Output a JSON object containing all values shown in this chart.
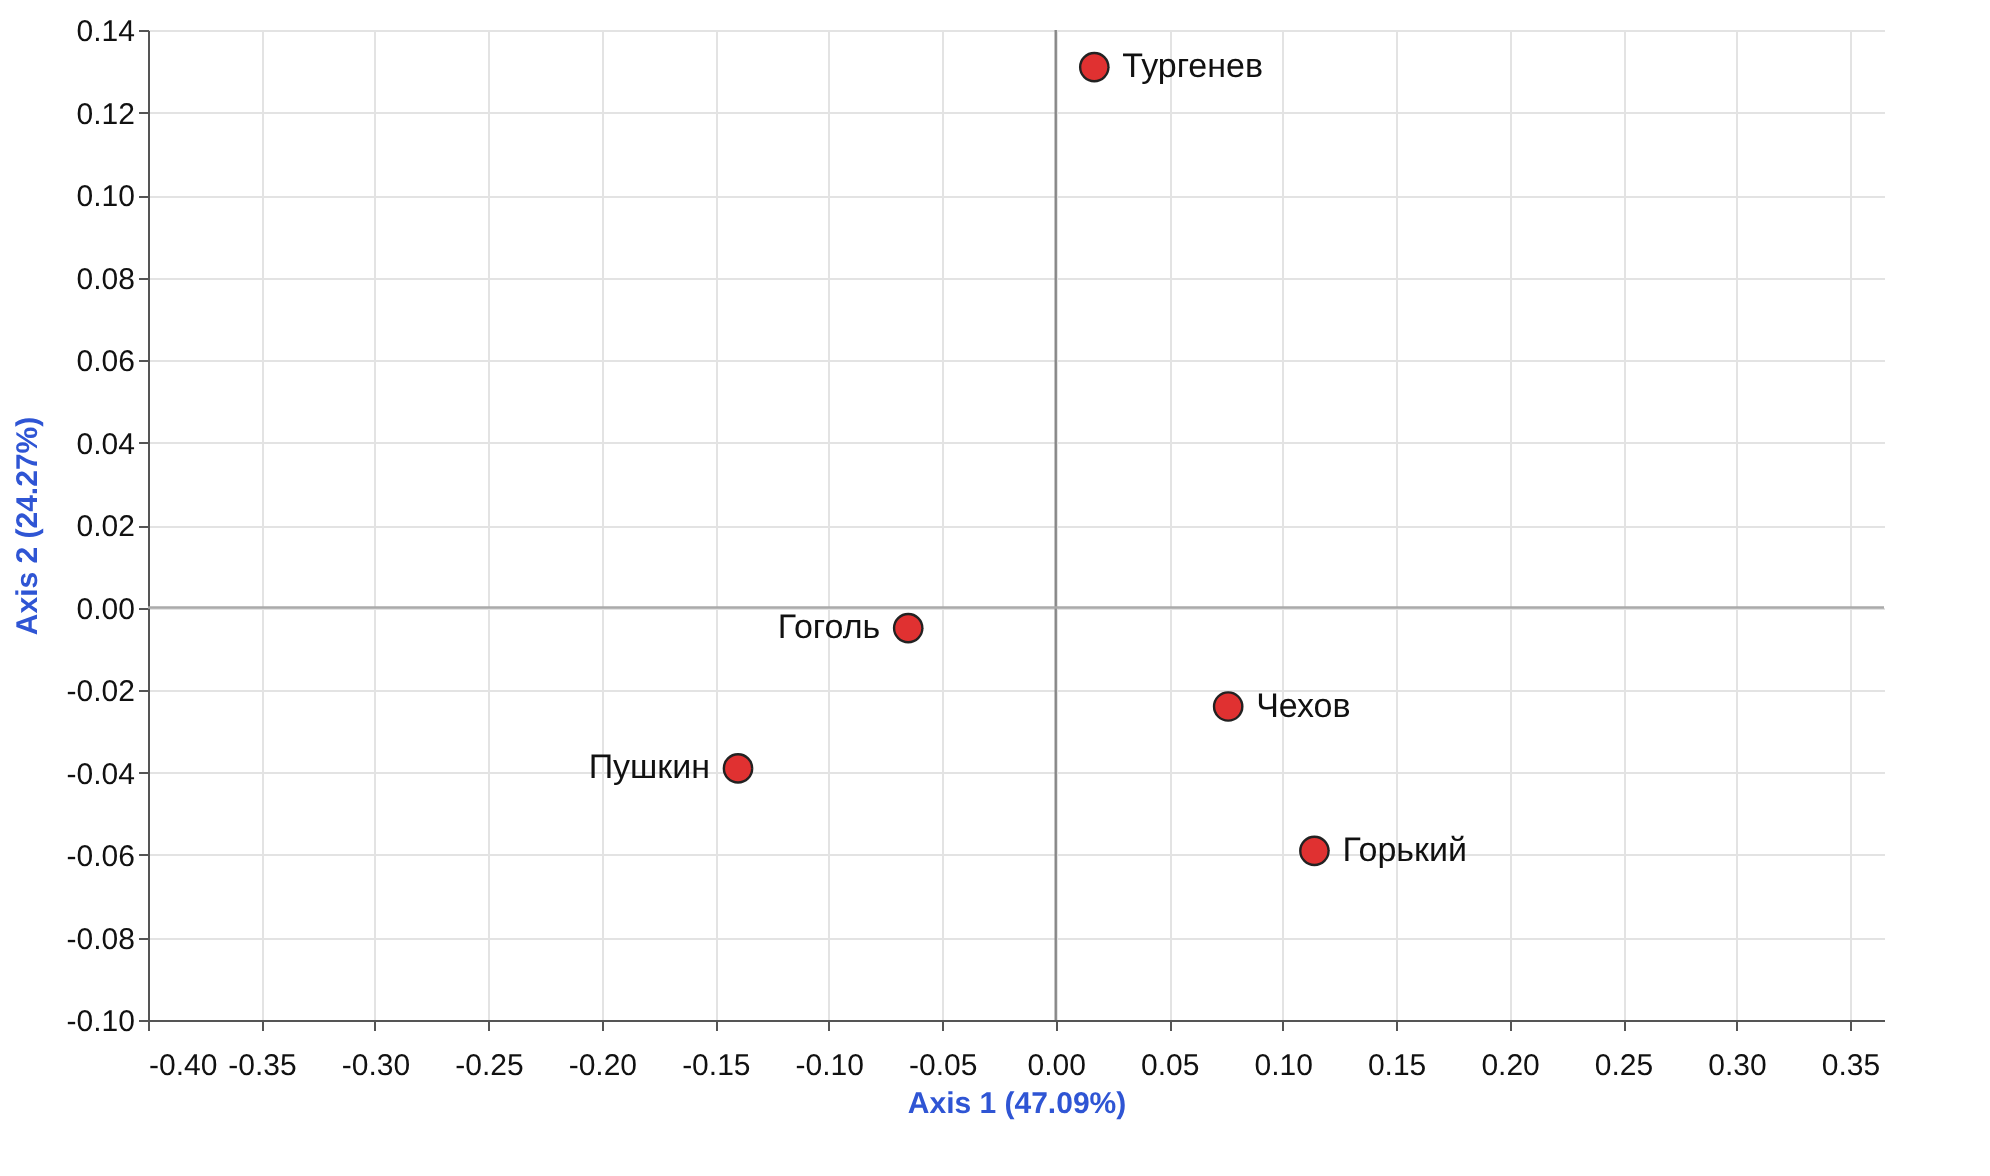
{
  "chart_data": {
    "type": "scatter",
    "xlabel": "Axis 1 (47.09%)",
    "ylabel": "Axis 2 (24.27%)",
    "series": [
      {
        "color": "#e03131",
        "x": [
          0.017,
          -0.065,
          0.076,
          -0.14,
          0.114
        ],
        "values": [
          0.131,
          -0.005,
          -0.024,
          -0.039,
          -0.059
        ]
      }
    ],
    "annotations": [
      {
        "text": "Тургенев",
        "x": 0.017,
        "y": 0.131
      },
      {
        "text": "Гоголь",
        "x": -0.065,
        "y": -0.005
      },
      {
        "text": "Чехов",
        "x": 0.076,
        "y": -0.024
      },
      {
        "text": "Пушкин",
        "x": -0.14,
        "y": -0.039
      },
      {
        "text": "Горький",
        "x": 0.114,
        "y": -0.059
      }
    ],
    "xlim": [
      -0.4,
      0.365
    ],
    "xticks": [
      {
        "value": -0.4,
        "label": "-0.40"
      },
      -0.35,
      {
        "value": -0.3,
        "label": "-0.30"
      },
      -0.25,
      {
        "value": -0.2,
        "label": "-0.20"
      },
      -0.15,
      {
        "value": -0.1,
        "label": "-0.10"
      },
      -0.05,
      {
        "value": 0,
        "label": "0.00"
      },
      0.05,
      {
        "value": 0.1,
        "label": "0.10"
      },
      0.15,
      {
        "value": 0.2,
        "label": "0.20"
      },
      0.25,
      {
        "value": 0.3,
        "label": "0.30"
      },
      0.35
    ],
    "ylim": [
      -0.1,
      0.14
    ],
    "yticks": [
      {
        "value": -0.1,
        "label": "-0.10"
      },
      -0.08,
      -0.06,
      -0.04,
      -0.02,
      {
        "value": 0,
        "label": "0.00"
      },
      0.02,
      0.04,
      0.06,
      0.08,
      {
        "value": 0.1,
        "label": "0.10"
      },
      0.12,
      0.14
    ],
    "ref_lines": [
      {
        "axis": "x",
        "value": 0,
        "color": "#888888"
      },
      {
        "axis": "y",
        "value": 0,
        "color": "#aaaaaa"
      }
    ],
    "grid": true,
    "marker": "circle"
  }
}
